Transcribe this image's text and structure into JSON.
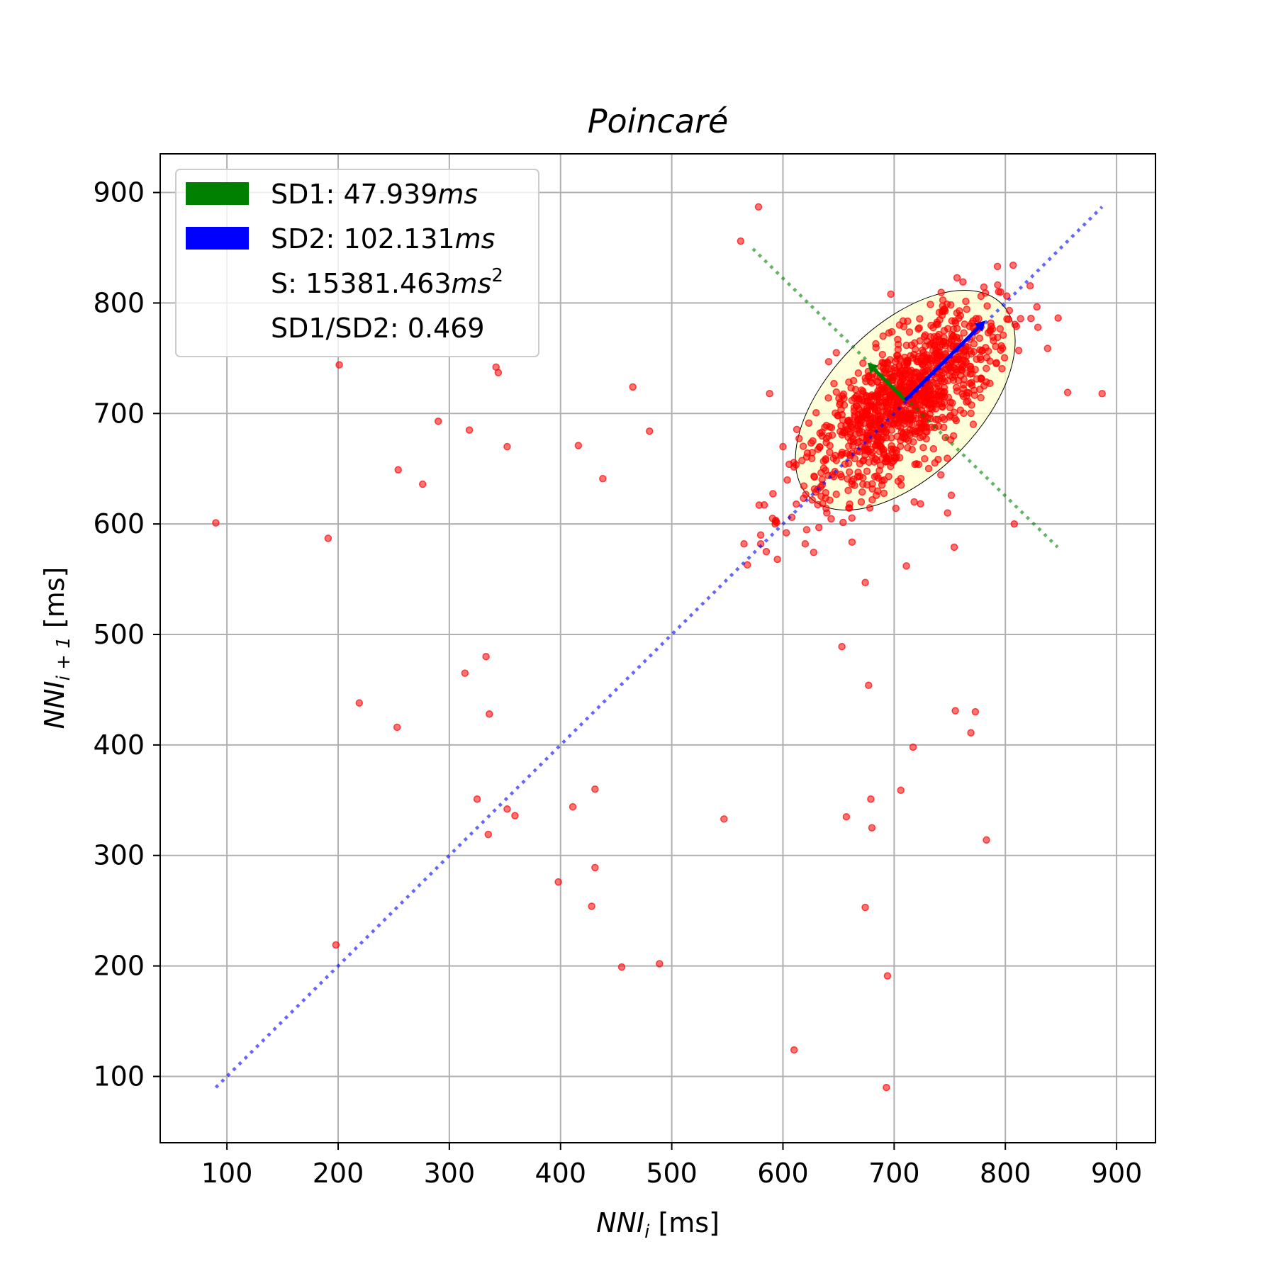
{
  "chart_data": {
    "type": "scatter",
    "title": "Poincaré",
    "xlabel": {
      "italic": "NNI",
      "sub": "i",
      "unit": " [ms]"
    },
    "ylabel": {
      "italic": "NNI",
      "sub": "i + 1",
      "unit": " [ms]"
    },
    "xlim": [
      40,
      935
    ],
    "ylim": [
      40,
      935
    ],
    "xticks": [
      100,
      200,
      300,
      400,
      500,
      600,
      700,
      800,
      900
    ],
    "yticks": [
      100,
      200,
      300,
      400,
      500,
      600,
      700,
      800,
      900
    ],
    "grid": true,
    "legend_position": "upper-left",
    "legend": [
      {
        "label": "SD1: 47.939",
        "unit": "ms",
        "sup": "",
        "swatch": "#008000"
      },
      {
        "label": "SD2: 102.131",
        "unit": "ms",
        "sup": "",
        "swatch": "#0000ff"
      },
      {
        "label": "S: 15381.463",
        "unit": "ms",
        "sup": "2",
        "swatch": ""
      },
      {
        "label": "SD1/SD2: 0.469",
        "unit": "",
        "sup": "",
        "swatch": ""
      }
    ],
    "series": [
      {
        "type": "scatter",
        "color": "#ff0000",
        "points": [
          [
            90,
            601
          ],
          [
            191,
            587
          ],
          [
            201,
            744
          ],
          [
            198,
            219
          ],
          [
            219,
            438
          ],
          [
            253,
            416
          ],
          [
            254,
            649
          ],
          [
            276,
            636
          ],
          [
            290,
            693
          ],
          [
            314,
            465
          ],
          [
            318,
            685
          ],
          [
            325,
            351
          ],
          [
            333,
            480
          ],
          [
            335,
            319
          ],
          [
            336,
            428
          ],
          [
            342,
            742
          ],
          [
            344,
            737
          ],
          [
            352,
            670
          ],
          [
            352,
            342
          ],
          [
            359,
            336
          ],
          [
            398,
            276
          ],
          [
            411,
            344
          ],
          [
            416,
            671
          ],
          [
            428,
            254
          ],
          [
            431,
            360
          ],
          [
            431,
            289
          ],
          [
            438,
            641
          ],
          [
            455,
            199
          ],
          [
            465,
            724
          ],
          [
            480,
            684
          ],
          [
            489,
            202
          ],
          [
            547,
            333
          ],
          [
            562,
            856
          ],
          [
            578,
            887
          ],
          [
            588,
            718
          ],
          [
            610,
            124
          ],
          [
            653,
            489
          ],
          [
            657,
            335
          ],
          [
            674,
            547
          ],
          [
            674,
            253
          ],
          [
            677,
            454
          ],
          [
            679,
            351
          ],
          [
            680,
            325
          ],
          [
            693,
            90
          ],
          [
            694,
            191
          ],
          [
            697,
            808
          ],
          [
            706,
            359
          ],
          [
            711,
            562
          ],
          [
            717,
            398
          ],
          [
            748,
            610
          ],
          [
            754,
            579
          ],
          [
            755,
            431
          ],
          [
            769,
            411
          ],
          [
            773,
            430
          ],
          [
            783,
            314
          ],
          [
            808,
            600
          ],
          [
            856,
            719
          ],
          [
            887,
            718
          ],
          [
            565,
            582
          ],
          [
            568,
            563
          ],
          [
            580,
            590
          ],
          [
            580,
            582
          ],
          [
            585,
            575
          ],
          [
            593,
            600
          ],
          [
            595,
            568
          ],
          [
            600,
            670
          ],
          [
            603,
            592
          ],
          [
            608,
            606
          ],
          [
            612,
            618
          ],
          [
            620,
            582
          ],
          [
            648,
            755
          ],
          [
            660,
            618
          ],
          [
            675,
            700
          ],
          [
            690,
            770
          ],
          [
            705,
            660
          ],
          [
            718,
            620
          ],
          [
            745,
            775
          ],
          [
            760,
            740
          ],
          [
            792,
            746
          ],
          [
            812,
            757
          ],
          [
            823,
            786
          ]
        ],
        "cluster": {
          "center": [
            710,
            712
          ],
          "count": 1100,
          "spread_major": 100,
          "spread_minor": 32,
          "angle_deg": 45
        }
      }
    ],
    "ellipse": {
      "center": [
        710,
        712
      ],
      "sd1": 47.939,
      "sd2": 102.131,
      "width_axis_sd2": 2,
      "height_axis_sd1": 2,
      "fill": "#ffffcc"
    },
    "identity_line": {
      "from": [
        90,
        90
      ],
      "to": [
        887,
        887
      ],
      "color": "#0000ff"
    },
    "perpendicular_line": {
      "from": [
        573,
        849
      ],
      "to": [
        847,
        579
      ],
      "color": "#008000"
    },
    "sd1_arrow": {
      "from": [
        710,
        712
      ],
      "to": [
        676,
        746
      ],
      "color": "#008000"
    },
    "sd2_arrow": {
      "from": [
        710,
        712
      ],
      "to": [
        782,
        784
      ],
      "color": "#0000ff"
    }
  }
}
